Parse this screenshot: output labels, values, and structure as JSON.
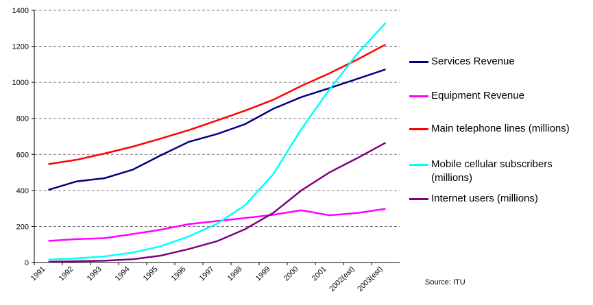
{
  "chart_data": {
    "type": "line",
    "categories": [
      "1991",
      "1992",
      "1993",
      "1994",
      "1995",
      "1996",
      "1997",
      "1998",
      "1999",
      "2000",
      "2001",
      "2002(est)",
      "2003(est)"
    ],
    "series": [
      {
        "name": "Services Revenue",
        "color": "#000080",
        "values": [
          403,
          450,
          468,
          515,
          595,
          670,
          713,
          768,
          853,
          918,
          968,
          1020,
          1072
        ]
      },
      {
        "name": "Equipment Revenue",
        "color": "#ff00ff",
        "values": [
          120,
          130,
          135,
          158,
          182,
          213,
          230,
          247,
          265,
          290,
          262,
          275,
          298
        ]
      },
      {
        "name": "Main telephone lines (millions)",
        "color": "#ff0000",
        "values": [
          546,
          570,
          605,
          643,
          688,
          735,
          788,
          843,
          903,
          980,
          1050,
          1127,
          1210
        ]
      },
      {
        "name": "Mobile cellular subscribers (millions)",
        "color": "#00ffff",
        "values": [
          16,
          23,
          34,
          55,
          90,
          145,
          215,
          318,
          490,
          740,
          960,
          1160,
          1330
        ]
      },
      {
        "name": "Internet users (millions)",
        "color": "#800080",
        "values": [
          4,
          7,
          10,
          18,
          38,
          75,
          118,
          185,
          275,
          400,
          500,
          580,
          665
        ]
      }
    ],
    "ylim": [
      0,
      1400
    ],
    "yticks": [
      0,
      200,
      400,
      600,
      800,
      1000,
      1200,
      1400
    ],
    "grid": true,
    "legend": "right",
    "annotation": "Source: ITU"
  }
}
